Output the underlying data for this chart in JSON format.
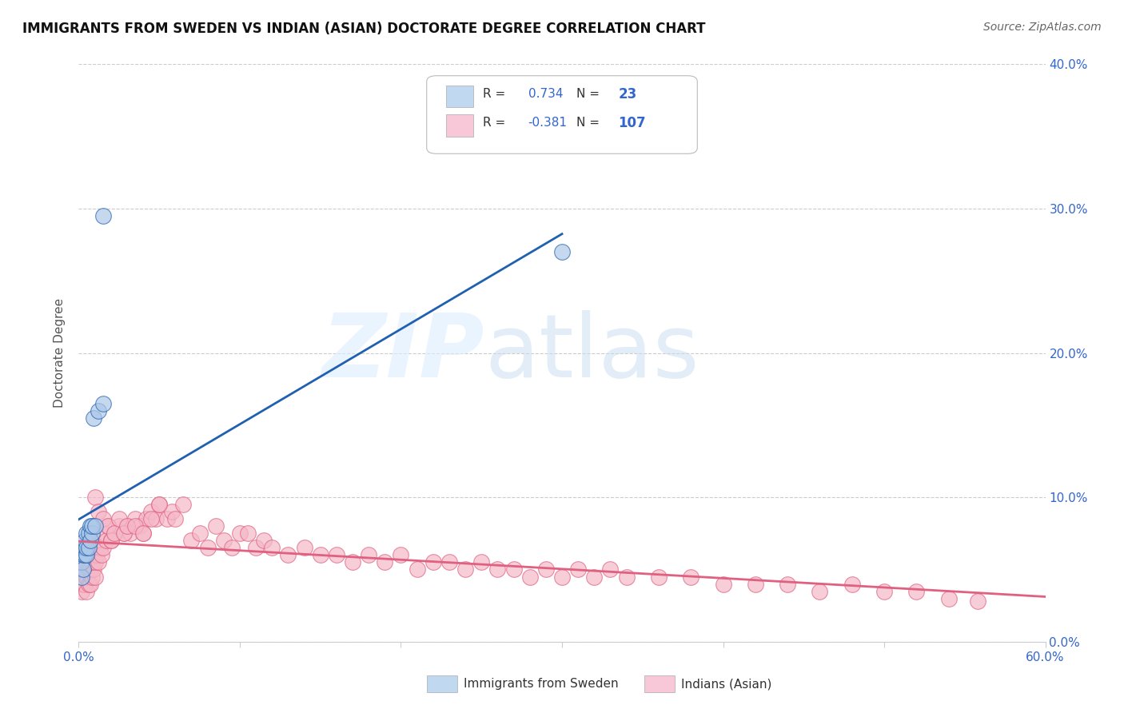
{
  "title": "IMMIGRANTS FROM SWEDEN VS INDIAN (ASIAN) DOCTORATE DEGREE CORRELATION CHART",
  "source": "Source: ZipAtlas.com",
  "ylabel": "Doctorate Degree",
  "xlim": [
    0.0,
    0.6
  ],
  "ylim": [
    0.0,
    0.4
  ],
  "xticks": [
    0.0,
    0.1,
    0.2,
    0.3,
    0.4,
    0.5,
    0.6
  ],
  "xtick_labels": [
    "0.0%",
    "",
    "",
    "",
    "",
    "",
    "60.0%"
  ],
  "yticks": [
    0.0,
    0.1,
    0.2,
    0.3,
    0.4
  ],
  "ytick_labels_right": [
    "0.0%",
    "10.0%",
    "20.0%",
    "30.0%",
    "40.0%"
  ],
  "sweden_R": 0.734,
  "sweden_N": 23,
  "indian_R": -0.381,
  "indian_N": 107,
  "sweden_color": "#adc8e8",
  "swedish_line_color": "#2060b0",
  "indian_color": "#f5b8c8",
  "indian_line_color": "#e06080",
  "legend_sweden_fill": "#c0d8f0",
  "legend_indian_fill": "#f8c8d8",
  "sweden_x": [
    0.002,
    0.002,
    0.003,
    0.003,
    0.003,
    0.004,
    0.004,
    0.004,
    0.005,
    0.005,
    0.005,
    0.006,
    0.006,
    0.007,
    0.007,
    0.008,
    0.008,
    0.009,
    0.01,
    0.012,
    0.015,
    0.015,
    0.3
  ],
  "sweden_y": [
    0.045,
    0.055,
    0.05,
    0.06,
    0.065,
    0.06,
    0.065,
    0.07,
    0.06,
    0.065,
    0.075,
    0.065,
    0.075,
    0.07,
    0.08,
    0.075,
    0.08,
    0.155,
    0.08,
    0.16,
    0.295,
    0.165,
    0.27
  ],
  "indian_x": [
    0.002,
    0.003,
    0.003,
    0.003,
    0.004,
    0.004,
    0.004,
    0.005,
    0.005,
    0.005,
    0.005,
    0.006,
    0.006,
    0.006,
    0.007,
    0.007,
    0.007,
    0.007,
    0.008,
    0.008,
    0.008,
    0.009,
    0.009,
    0.01,
    0.01,
    0.011,
    0.012,
    0.013,
    0.014,
    0.015,
    0.016,
    0.017,
    0.018,
    0.02,
    0.022,
    0.025,
    0.028,
    0.03,
    0.032,
    0.035,
    0.038,
    0.04,
    0.042,
    0.045,
    0.048,
    0.05,
    0.055,
    0.058,
    0.06,
    0.065,
    0.07,
    0.075,
    0.08,
    0.085,
    0.09,
    0.095,
    0.1,
    0.105,
    0.11,
    0.115,
    0.12,
    0.13,
    0.14,
    0.15,
    0.16,
    0.17,
    0.18,
    0.19,
    0.2,
    0.21,
    0.22,
    0.23,
    0.24,
    0.25,
    0.26,
    0.27,
    0.28,
    0.29,
    0.3,
    0.31,
    0.32,
    0.33,
    0.34,
    0.36,
    0.38,
    0.4,
    0.42,
    0.44,
    0.46,
    0.48,
    0.5,
    0.52,
    0.54,
    0.558,
    0.01,
    0.012,
    0.015,
    0.018,
    0.02,
    0.022,
    0.025,
    0.028,
    0.03,
    0.035,
    0.04,
    0.045,
    0.05
  ],
  "indian_y": [
    0.035,
    0.04,
    0.045,
    0.055,
    0.04,
    0.05,
    0.06,
    0.035,
    0.045,
    0.055,
    0.065,
    0.04,
    0.05,
    0.06,
    0.04,
    0.05,
    0.06,
    0.07,
    0.045,
    0.055,
    0.065,
    0.05,
    0.06,
    0.045,
    0.055,
    0.06,
    0.055,
    0.065,
    0.06,
    0.065,
    0.075,
    0.07,
    0.08,
    0.07,
    0.075,
    0.08,
    0.075,
    0.08,
    0.075,
    0.085,
    0.08,
    0.075,
    0.085,
    0.09,
    0.085,
    0.095,
    0.085,
    0.09,
    0.085,
    0.095,
    0.07,
    0.075,
    0.065,
    0.08,
    0.07,
    0.065,
    0.075,
    0.075,
    0.065,
    0.07,
    0.065,
    0.06,
    0.065,
    0.06,
    0.06,
    0.055,
    0.06,
    0.055,
    0.06,
    0.05,
    0.055,
    0.055,
    0.05,
    0.055,
    0.05,
    0.05,
    0.045,
    0.05,
    0.045,
    0.05,
    0.045,
    0.05,
    0.045,
    0.045,
    0.045,
    0.04,
    0.04,
    0.04,
    0.035,
    0.04,
    0.035,
    0.035,
    0.03,
    0.028,
    0.1,
    0.09,
    0.085,
    0.08,
    0.07,
    0.075,
    0.085,
    0.075,
    0.08,
    0.08,
    0.075,
    0.085,
    0.095
  ]
}
